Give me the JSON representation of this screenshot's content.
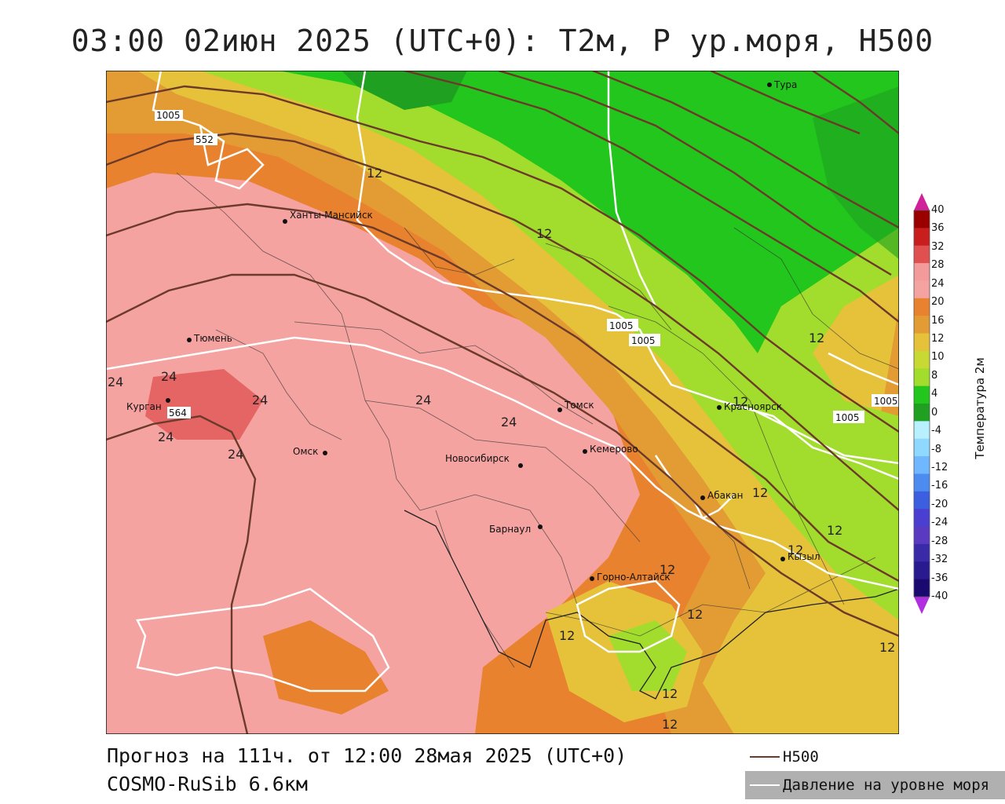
{
  "title": "03:00 02июн 2025 (UTC+0): T2м, P ур.моря, H500",
  "footer": {
    "forecast": "Прогноз на 111ч. от 12:00 28мая 2025 (UTC+0)",
    "model": "COSMO-RuSib 6.6км"
  },
  "legend": {
    "h500_label": "H500",
    "h500_color": "#6b3a2a",
    "pressure_label": "Давление на уровне моря",
    "pressure_color": "#ffffff"
  },
  "colorbar": {
    "label": "Температура 2м",
    "ticks": [
      "40",
      "36",
      "32",
      "28",
      "24",
      "20",
      "16",
      "12",
      "10",
      "8",
      "4",
      "0",
      "-4",
      "-8",
      "-12",
      "-16",
      "-20",
      "-24",
      "-28",
      "-32",
      "-36",
      "-40"
    ],
    "colors": [
      "#9b0000",
      "#c81e1e",
      "#e05050",
      "#f39a9a",
      "#f4a3a0",
      "#e8822e",
      "#e39c33",
      "#e6c23a",
      "#c8d934",
      "#a2dc2c",
      "#22c61c",
      "#1fa020",
      "#b8f0ff",
      "#8fd8ff",
      "#6fb8ff",
      "#4c8cf0",
      "#3c5fe0",
      "#4a3fd0",
      "#5a3ac0",
      "#3a2aa8",
      "#2a1a90",
      "#1a0a70"
    ]
  },
  "cities": [
    {
      "name": "Тура"
    },
    {
      "name": "Ханты-Мансийск"
    },
    {
      "name": "Тюмень"
    },
    {
      "name": "Курган"
    },
    {
      "name": "Омск"
    },
    {
      "name": "Томск"
    },
    {
      "name": "Кемерово"
    },
    {
      "name": "Новосибирск"
    },
    {
      "name": "Барнаул"
    },
    {
      "name": "Красноярск"
    },
    {
      "name": "Абакан"
    },
    {
      "name": "Горно-Алтайск"
    },
    {
      "name": "Кызыл"
    }
  ],
  "isoline_labels": {
    "temperature": [
      "12",
      "12",
      "12",
      "12",
      "12",
      "12",
      "12",
      "12",
      "12",
      "12",
      "12",
      "12",
      "12",
      "24",
      "24",
      "24",
      "24",
      "24",
      "24",
      "24"
    ],
    "pressure": [
      "1005",
      "1005",
      "1005",
      "1005",
      "1005"
    ],
    "h500": [
      "552",
      "564"
    ]
  }
}
